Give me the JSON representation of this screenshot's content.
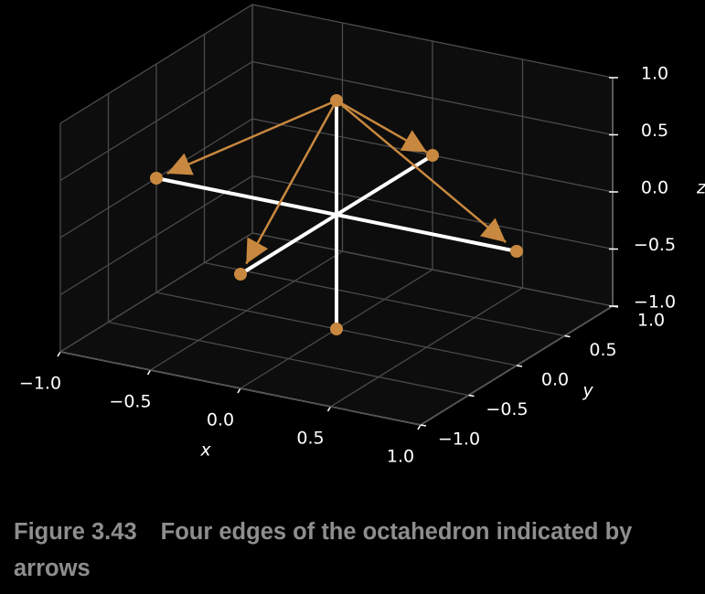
{
  "chart_data": {
    "type": "scatter3d",
    "xlabel": "x",
    "ylabel": "y",
    "zlabel": "z",
    "xlim": [
      -1,
      1
    ],
    "ylim": [
      -1,
      1
    ],
    "zlim": [
      -1,
      1
    ],
    "xticks": [
      {
        "value": -1,
        "label": "−1.0"
      },
      {
        "value": -0.5,
        "label": "−0.5"
      },
      {
        "value": 0,
        "label": "0.0"
      },
      {
        "value": 0.5,
        "label": "0.5"
      },
      {
        "value": 1,
        "label": "1.0"
      }
    ],
    "yticks": [
      {
        "value": -1,
        "label": "−1.0"
      },
      {
        "value": -0.5,
        "label": "−0.5"
      },
      {
        "value": 0,
        "label": "0.0"
      },
      {
        "value": 0.5,
        "label": "0.5"
      },
      {
        "value": 1,
        "label": "1.0"
      }
    ],
    "zticks": [
      {
        "value": -1,
        "label": "−1.0"
      },
      {
        "value": -0.5,
        "label": "−0.5"
      },
      {
        "value": 0,
        "label": "0.0"
      },
      {
        "value": 0.5,
        "label": "0.5"
      },
      {
        "value": 1,
        "label": "1.0"
      }
    ],
    "grid": true,
    "lines": {
      "color": "#ffffff",
      "x1": [
        -1,
        0,
        0
      ],
      "y1": [
        0,
        -1,
        0
      ],
      "z1": [
        0,
        0,
        -1
      ],
      "x2": [
        1,
        0,
        0
      ],
      "y2": [
        0,
        1,
        0
      ],
      "z2": [
        0,
        0,
        1
      ]
    },
    "arrows": {
      "color": "#c8883f",
      "x1": [
        0,
        0,
        0,
        0
      ],
      "y1": [
        0,
        0,
        0,
        0
      ],
      "z1": [
        1,
        1,
        1,
        1
      ],
      "x2": [
        1,
        -1,
        0,
        0
      ],
      "y2": [
        0,
        0,
        1,
        -1
      ],
      "z2": [
        0,
        0,
        0,
        0
      ]
    },
    "points": {
      "color": "#c8883f",
      "x": [
        1,
        -1,
        0,
        0,
        0,
        0
      ],
      "y": [
        0,
        0,
        1,
        -1,
        0,
        0
      ],
      "z": [
        0,
        0,
        0,
        0,
        1,
        -1
      ]
    }
  },
  "caption": {
    "label": "Figure 3.43",
    "text": "Four edges of the octahedron indicated by arrows"
  }
}
